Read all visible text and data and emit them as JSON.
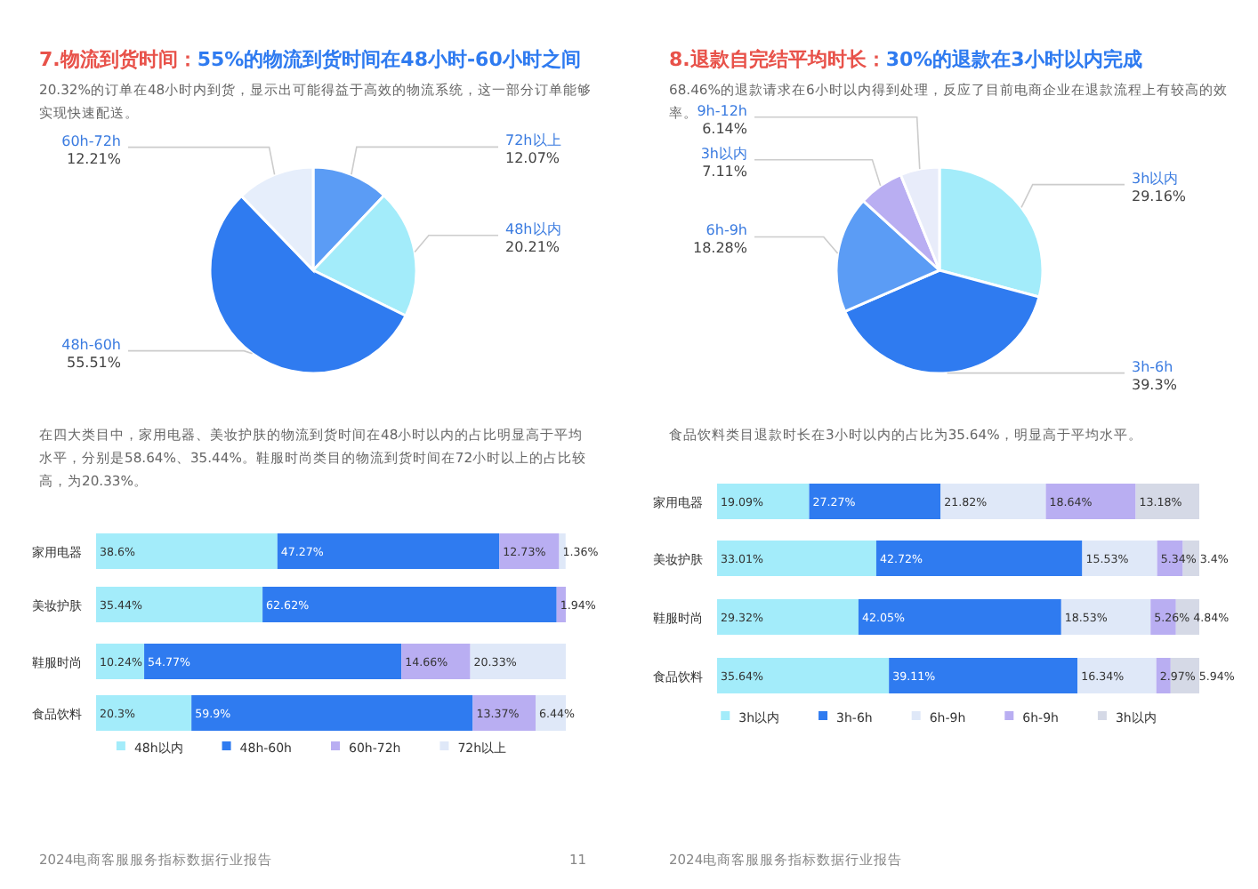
{
  "chart_data": [
    {
      "type": "pie",
      "title": "7.物流到货时间：55%的物流到货时间在48小时-60小时之间",
      "subtitle": "20.32%的订单在48小时内到货，显示出可能得益于高效的物流系统，这一部分订单能够实现快速配送。",
      "categories": [
        "72h以上",
        "48h以内",
        "48h-60h",
        "60h-72h"
      ],
      "values": [
        12.07,
        20.21,
        55.51,
        12.21
      ],
      "value_labels": [
        "12.07%",
        "20.21%",
        "55.51%",
        "12.21%"
      ],
      "colors": [
        "#5b9cf5",
        "#a3ecfa",
        "#2f7bf0",
        "#e6eefb"
      ]
    },
    {
      "type": "pie",
      "title": "8.退款自完结平均时长：30%的退款在3小时以内完成",
      "subtitle": "68.46%的退款请求在6小时以内得到处理，反应了目前电商企业在退款流程上有较高的效率。",
      "categories": [
        "3h以内",
        "3h-6h",
        "6h-9h",
        "3h以内",
        "9h-12h"
      ],
      "values": [
        29.16,
        39.3,
        18.28,
        7.11,
        6.14
      ],
      "value_labels": [
        "29.16%",
        "39.3%",
        "18.28%",
        "7.11%",
        "6.14%"
      ],
      "colors": [
        "#a3ecfa",
        "#2f7bf0",
        "#5b9cf5",
        "#b9aef2",
        "#e8ecfa"
      ]
    },
    {
      "type": "bar",
      "orientation": "horizontal",
      "stacked": true,
      "legend": "bottom",
      "subtitle": "在四大类目中，家用电器、美妆护肤的物流到货时间在48小时以内的占比明显高于平均水平，分别是58.64%、35.44%。鞋服时尚类目的物流到货时间在72小时以上的占比较高，为20.33%。",
      "categories": [
        "家用电器",
        "美妆护肤",
        "鞋服时尚",
        "食品饮料"
      ],
      "series": [
        {
          "name": "48h以内",
          "color": "#a3ecfa",
          "values": [
            38.6,
            35.44,
            10.24,
            20.3
          ],
          "value_labels": [
            "38.6%",
            "35.44%",
            "10.24%",
            "20.3%"
          ]
        },
        {
          "name": "48h-60h",
          "color": "#2f7bf0",
          "values": [
            47.27,
            62.62,
            54.77,
            59.9
          ],
          "value_labels": [
            "47.27%",
            "62.62%",
            "54.77%",
            "59.9%"
          ]
        },
        {
          "name": "60h-72h",
          "color": "#b9aef2",
          "values": [
            12.73,
            1.94,
            14.66,
            13.37
          ],
          "value_labels": [
            "12.73%",
            "1.94%",
            "14.66%",
            "13.37%"
          ]
        },
        {
          "name": "72h以上",
          "color": "#dfe8f8",
          "values": [
            1.36,
            null,
            20.33,
            6.44
          ],
          "value_labels": [
            "1.36%",
            null,
            "20.33%",
            "6.44%"
          ]
        }
      ],
      "annotations": [
        "2024电商客服服务指标数据行业报告",
        "11"
      ]
    },
    {
      "type": "bar",
      "orientation": "horizontal",
      "stacked": true,
      "legend": "bottom",
      "subtitle": "食品饮料类目退款时长在3小时以内的占比为35.64%，明显高于平均水平。",
      "categories": [
        "家用电器",
        "美妆护肤",
        "鞋服时尚",
        "食品饮料"
      ],
      "series": [
        {
          "name": "3h以内",
          "color": "#a3ecfa",
          "values": [
            19.09,
            33.01,
            29.32,
            35.64
          ],
          "value_labels": [
            "19.09%",
            "33.01%",
            "29.32%",
            "35.64%"
          ]
        },
        {
          "name": "3h-6h",
          "color": "#2f7bf0",
          "values": [
            27.27,
            42.72,
            42.05,
            39.11
          ],
          "value_labels": [
            "27.27%",
            "42.72%",
            "42.05%",
            "39.11%"
          ]
        },
        {
          "name": "6h-9h",
          "color": "#dfe8f8",
          "values": [
            21.82,
            15.53,
            18.53,
            16.34
          ],
          "value_labels": [
            "21.82%",
            "15.53%",
            "18.53%",
            "16.34%"
          ]
        },
        {
          "name": "6h-9h",
          "color": "#b9aef2",
          "values": [
            18.64,
            5.34,
            5.26,
            2.97
          ],
          "value_labels": [
            "18.64%",
            "5.34%",
            "5.26%",
            "2.97%"
          ]
        },
        {
          "name": "3h以内",
          "color": "#d5d9e6",
          "values": [
            13.18,
            3.4,
            4.84,
            5.94
          ],
          "value_labels": [
            "13.18%",
            "3.4%",
            "4.84%",
            "5.94%"
          ]
        }
      ],
      "annotations": [
        "2024电商客服服务指标数据行业报告"
      ]
    }
  ]
}
